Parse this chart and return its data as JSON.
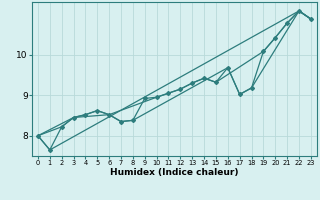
{
  "xlabel": "Humidex (Indice chaleur)",
  "bg_color": "#d8f0f0",
  "line_color": "#2d7d7d",
  "grid_color": "#b8dada",
  "xlim": [
    -0.5,
    23.5
  ],
  "ylim": [
    7.5,
    11.3
  ],
  "xticks": [
    0,
    1,
    2,
    3,
    4,
    5,
    6,
    7,
    8,
    9,
    10,
    11,
    12,
    13,
    14,
    15,
    16,
    17,
    18,
    19,
    20,
    21,
    22,
    23
  ],
  "yticks": [
    8,
    9,
    10
  ],
  "series": [
    {
      "x": [
        0,
        1,
        2,
        3,
        4,
        5,
        6,
        7,
        8,
        9,
        10,
        11,
        12,
        13,
        14,
        15,
        16,
        17,
        18,
        19,
        20,
        21,
        22,
        23
      ],
      "y": [
        8.0,
        7.65,
        8.22,
        8.45,
        8.52,
        8.62,
        8.52,
        8.35,
        8.38,
        8.92,
        8.95,
        9.05,
        9.15,
        9.3,
        9.42,
        9.32,
        9.68,
        9.02,
        9.18,
        10.08,
        10.42,
        10.78,
        11.08,
        10.88
      ],
      "marker": true,
      "lw": 0.9
    },
    {
      "x": [
        0,
        1,
        22,
        23
      ],
      "y": [
        8.0,
        7.65,
        11.08,
        10.88
      ],
      "marker": false,
      "lw": 0.9
    },
    {
      "x": [
        0,
        3,
        4,
        5,
        6,
        10,
        11,
        12,
        13,
        14,
        15,
        19,
        20,
        21,
        22,
        23
      ],
      "y": [
        8.0,
        8.45,
        8.52,
        8.62,
        8.52,
        8.95,
        9.05,
        9.15,
        9.3,
        9.42,
        9.32,
        10.08,
        10.42,
        10.78,
        11.08,
        10.88
      ],
      "marker": false,
      "lw": 0.9
    },
    {
      "x": [
        0,
        2,
        3,
        6,
        7,
        8,
        16,
        17,
        18,
        22,
        23
      ],
      "y": [
        8.0,
        8.22,
        8.45,
        8.52,
        8.35,
        8.38,
        9.68,
        9.02,
        9.18,
        11.08,
        10.88
      ],
      "marker": false,
      "lw": 0.9
    }
  ]
}
